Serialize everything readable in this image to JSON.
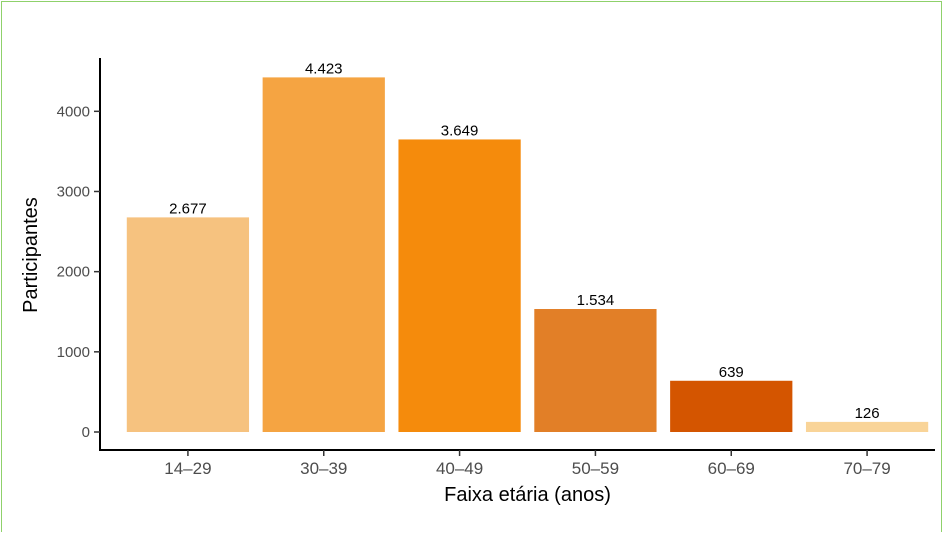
{
  "chart_data": {
    "type": "bar",
    "title": "",
    "xlabel": "Faixa etária (anos)",
    "ylabel": "Participantes",
    "categories": [
      "14–29",
      "30–39",
      "40–49",
      "50–59",
      "60–69",
      "70–79"
    ],
    "values": [
      2677,
      4423,
      3649,
      1534,
      639,
      126
    ],
    "data_labels": [
      "2.677",
      "4.423",
      "3.649",
      "1.534",
      "639",
      "126"
    ],
    "colors": [
      "#f6c27f",
      "#f5a442",
      "#f58b0c",
      "#e27f27",
      "#d45500",
      "#f9d498"
    ],
    "yticks": [
      0,
      1000,
      2000,
      3000,
      4000
    ],
    "ytick_labels": [
      "0",
      "1000",
      "2000",
      "3000",
      "4000"
    ],
    "ylim": [
      0,
      4640
    ],
    "grid": false,
    "legend": "none"
  }
}
